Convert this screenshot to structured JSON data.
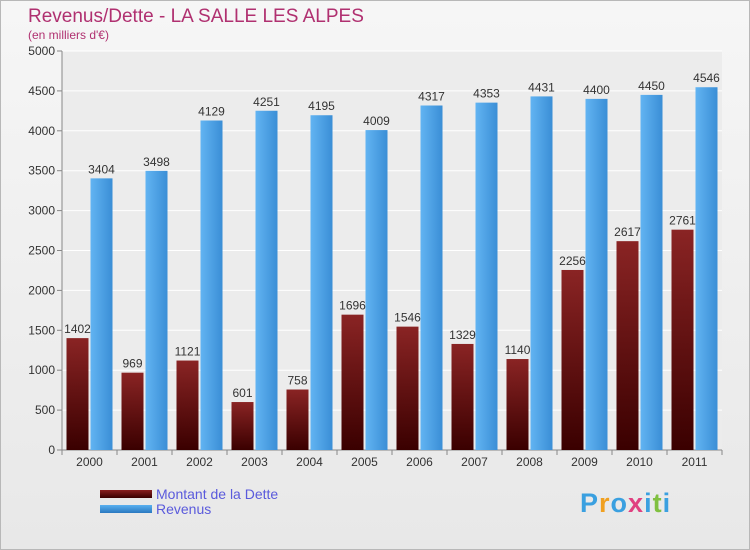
{
  "chart_data": {
    "type": "bar",
    "title": "Revenus/Dette - LA SALLE LES ALPES",
    "subtitle": "(en milliers d'€)",
    "categories": [
      "2000",
      "2001",
      "2002",
      "2003",
      "2004",
      "2005",
      "2006",
      "2007",
      "2008",
      "2009",
      "2010",
      "2011"
    ],
    "series": [
      {
        "name": "Montant de la Dette",
        "color": "#7a1a1a",
        "values": [
          1402,
          969,
          1121,
          601,
          758,
          1696,
          1546,
          1329,
          1140,
          2256,
          2617,
          2761
        ]
      },
      {
        "name": "Revenus",
        "color": "#4a9ee0",
        "values": [
          3404,
          3498,
          4129,
          4251,
          4195,
          4009,
          4317,
          4353,
          4431,
          4400,
          4450,
          4546
        ]
      }
    ],
    "ylim": [
      0,
      5000
    ],
    "yticks": [
      0,
      500,
      1000,
      1500,
      2000,
      2500,
      3000,
      3500,
      4000,
      4500,
      5000
    ],
    "grid": true,
    "legend_position": "bottom-left"
  },
  "legend": {
    "dette_label": "Montant de la Dette",
    "revenus_label": "Revenus"
  },
  "logo": {
    "letters": [
      "P",
      "r",
      "o",
      "x",
      "i",
      "t",
      "i"
    ],
    "colors": [
      "#3aa0e0",
      "#f0a020",
      "#3aa0e0",
      "#e04080",
      "#3aa0e0",
      "#80c040",
      "#3aa0e0"
    ]
  }
}
